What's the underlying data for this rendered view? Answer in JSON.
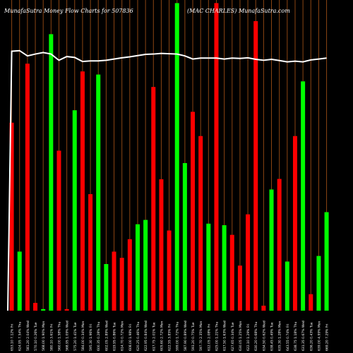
{
  "header": {
    "title": "MunafaSutra Money Flow Charts for 507836",
    "subtitle": "(MAC CHARLES) MunafaSutra.com"
  },
  "colors": {
    "background": "#000000",
    "up": "#00ff00",
    "down": "#ff0000",
    "line": "#ffffff",
    "grid": "#8b4513",
    "label": "#ffffff"
  },
  "chart_data": {
    "type": "bar",
    "title": "MunafaSutra Money Flow Charts for 507836",
    "subtitle": "(MAC CHARLES) MunafaSutra.com",
    "xlabel": "",
    "ylabel": "",
    "ylim": [
      0,
      100
    ],
    "grid": "vertical",
    "categories": [
      "653.10 7.12% Fri",
      "624.95 7.54% Thu",
      "581.20 2.04% Wed",
      "570.10 0.26% Tue",
      "568.00 1.90% Mon",
      "580.10 3.61% Fri",
      "560.00 1.58% Thu",
      "568.95 1.09% Wed",
      "575.20 1.41% Tue",
      "584.00 0.34% Mon",
      "595.30 1.96% Fri",
      "600.35 0.28% Thu",
      "602.05 2.89% Wed",
      "619.95 0.86% Tue",
      "614.70 0.72% Mon",
      "608.00 1.98% Fri",
      "620.25 0.46% Thu",
      "622.95 0.84% Wed",
      "617.75 2.01% Tue",
      "605.60 2.72% Mon",
      "622.55 3.85% Fri",
      "599.00 1.72% Thu",
      "587.90 0.89% Wed",
      "593.20 0.75% Tue",
      "597.70 2.35% Mon",
      "612.05 2.08% Fri",
      "625.00 1.21% Thu",
      "617.50 1.63% Wed",
      "627.65 0.34% Tue",
      "630.05 1.25% Mon",
      "622.10 1.29% Fri",
      "630.20 0.68% Thu",
      "634.50 0.62% Wed",
      "638.45 0.49% Tue",
      "635.30 1.28% Mon",
      "643.55 0.74% Fri",
      "638.75 1.18% Thu",
      "631.35 0.67% Wed",
      "636.20 0.43% Tue",
      "639.00 4.99% Mon",
      "669.20 7.29% Fri"
    ],
    "values": [
      60.5,
      19,
      79.5,
      2.5,
      0.5,
      89,
      51.5,
      0.5,
      64.5,
      77,
      37.5,
      76,
      15,
      19,
      17,
      23,
      27.8,
      29.2,
      72,
      42.3,
      25.8,
      99,
      47.5,
      64,
      56.2,
      28,
      99,
      27.5,
      24.4,
      14.5,
      31,
      93.2,
      1.6,
      39,
      42.4,
      15.8,
      56.2,
      73.8,
      5.3,
      17.6,
      31.7
    ],
    "direction": [
      "down",
      "up",
      "down",
      "down",
      "up",
      "up",
      "down",
      "down",
      "up",
      "down",
      "down",
      "up",
      "up",
      "down",
      "red",
      "red",
      "up",
      "up",
      "down",
      "down",
      "down",
      "up",
      "up",
      "down",
      "down",
      "up",
      "down",
      "up",
      "down",
      "down",
      "down",
      "down",
      "down",
      "up",
      "down",
      "up",
      "down",
      "up",
      "down",
      "up",
      "up"
    ],
    "series": [
      {
        "values": [
          83.5,
          83.7,
          82,
          82.6,
          83.1,
          82.6,
          80.6,
          81.8,
          81.5,
          80.2,
          80.4,
          80.4,
          80.6,
          81,
          81.4,
          81.7,
          82.1,
          82.5,
          82.6,
          82.8,
          82.7,
          82.6,
          82,
          81,
          81.3,
          81.3,
          81.3,
          81,
          81.3,
          81.2,
          81.4,
          80.9,
          80.6,
          80.9,
          80.5,
          80.1,
          80.3,
          80.1,
          80.7,
          81,
          81.3
        ]
      }
    ]
  }
}
